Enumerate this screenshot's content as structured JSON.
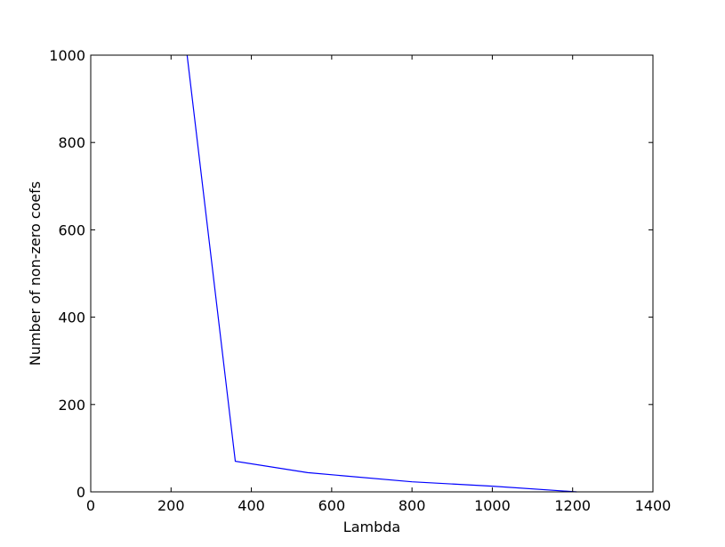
{
  "chart_data": {
    "type": "line",
    "title": "",
    "xlabel": "Lambda",
    "ylabel": "Number of non-zero coefs",
    "xlim": [
      0,
      1400
    ],
    "ylim": [
      0,
      1000
    ],
    "xticks": [
      0,
      200,
      400,
      600,
      800,
      1000,
      1200,
      1400
    ],
    "yticks": [
      0,
      200,
      400,
      600,
      800,
      1000
    ],
    "grid": false,
    "series": [
      {
        "name": "non-zero coefs",
        "color": "#0000ff",
        "x": [
          240,
          360,
          540,
          800,
          1000,
          1210
        ],
        "y": [
          1000,
          70,
          44,
          23,
          13,
          0
        ]
      }
    ]
  }
}
